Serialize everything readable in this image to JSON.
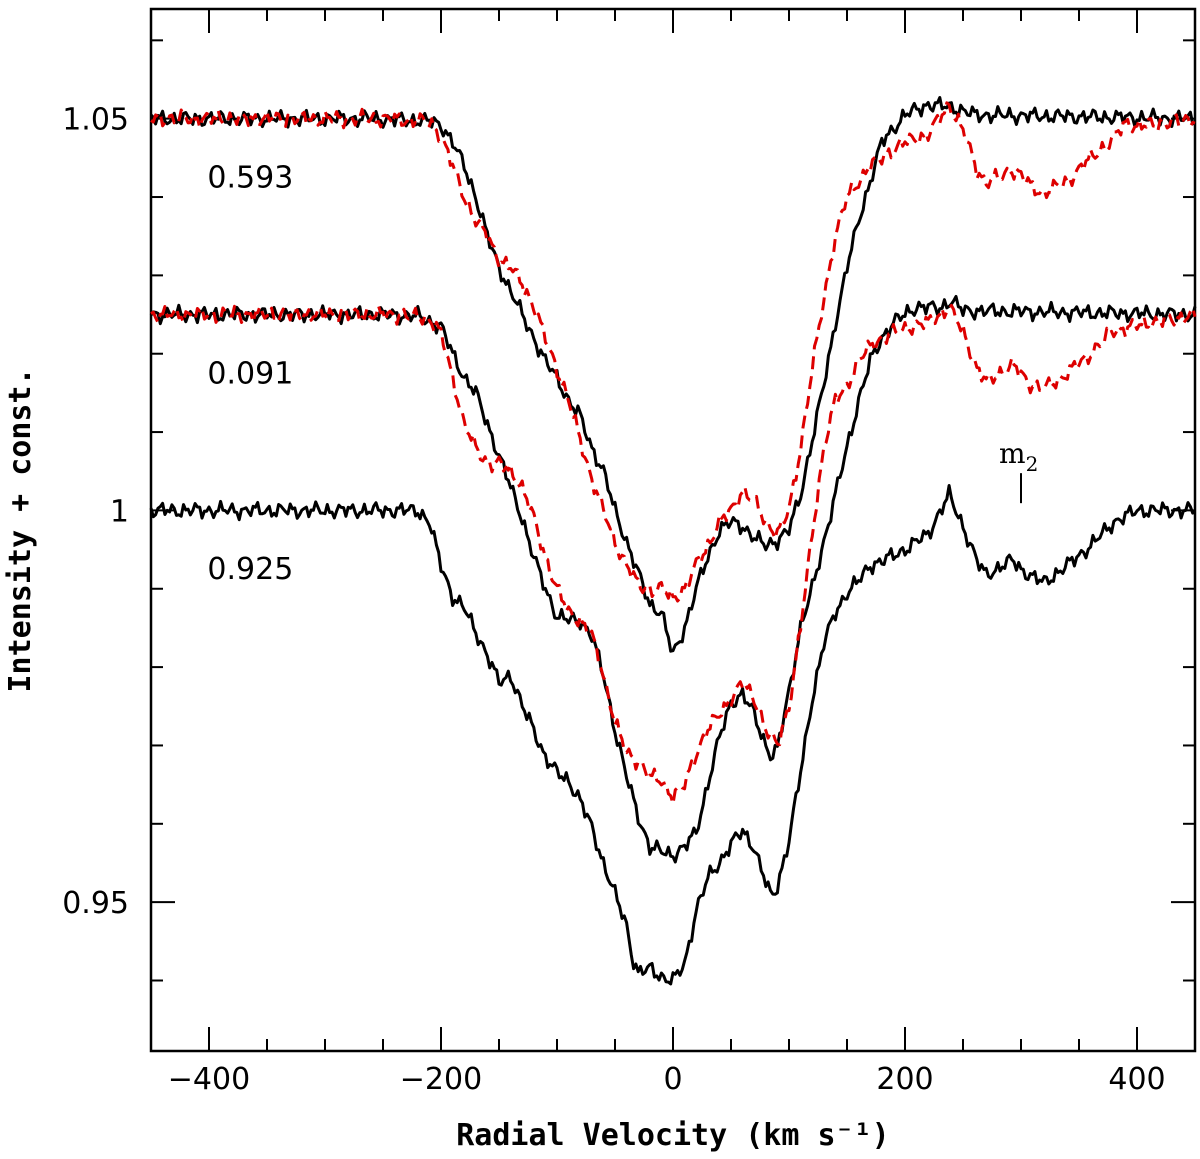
{
  "chart_data": {
    "type": "line",
    "title": "",
    "xlabel": "Radial Velocity (km s⁻¹)",
    "ylabel": "Intensity + const.",
    "xlim": [
      -450,
      450
    ],
    "ylim": [
      0.931,
      1.064
    ],
    "grid": false,
    "x_ticks": [
      -400,
      -200,
      0,
      200,
      400
    ],
    "x_tick_labels": [
      "−400",
      "−200",
      "0",
      "200",
      "400"
    ],
    "y_ticks": [
      0.95,
      1.0,
      1.05
    ],
    "y_tick_labels": [
      "0.95",
      "1",
      "1.05"
    ],
    "colors": {
      "observed": "#000000",
      "model": "#dd0000"
    },
    "series": [
      {
        "name": "0.593 observed",
        "style": "solid",
        "color": "#000000",
        "points": [
          [
            -450,
            1.05
          ],
          [
            -260,
            1.05
          ],
          [
            -210,
            1.0497
          ],
          [
            -200,
            1.0492
          ],
          [
            -190,
            1.047
          ],
          [
            -180,
            1.044
          ],
          [
            -170,
            1.04
          ],
          [
            -160,
            1.035
          ],
          [
            -150,
            1.031
          ],
          [
            -140,
            1.028
          ],
          [
            -130,
            1.025
          ],
          [
            -120,
            1.022
          ],
          [
            -110,
            1.019
          ],
          [
            -100,
            1.017
          ],
          [
            -90,
            1.014
          ],
          [
            -80,
            1.012
          ],
          [
            -70,
            1.008
          ],
          [
            -60,
            1.005
          ],
          [
            -50,
            1.0
          ],
          [
            -40,
            0.996
          ],
          [
            -30,
            0.992
          ],
          [
            -20,
            0.988
          ],
          [
            -10,
            0.987
          ],
          [
            0,
            0.9815
          ],
          [
            10,
            0.985
          ],
          [
            20,
            0.99
          ],
          [
            30,
            0.994
          ],
          [
            40,
            0.9975
          ],
          [
            50,
            0.9985
          ],
          [
            60,
            0.998
          ],
          [
            70,
            0.9965
          ],
          [
            80,
            0.9955
          ],
          [
            90,
            0.9962
          ],
          [
            100,
            0.9975
          ],
          [
            110,
            1.002
          ],
          [
            120,
            1.009
          ],
          [
            130,
            1.016
          ],
          [
            140,
            1.024
          ],
          [
            150,
            1.031
          ],
          [
            160,
            1.037
          ],
          [
            170,
            1.042
          ],
          [
            180,
            1.047
          ],
          [
            200,
            1.0505
          ],
          [
            220,
            1.0518
          ],
          [
            240,
            1.0515
          ],
          [
            260,
            1.0505
          ],
          [
            450,
            1.05
          ]
        ]
      },
      {
        "name": "0.593 model",
        "style": "dashed",
        "color": "#dd0000",
        "points": [
          [
            -450,
            1.05
          ],
          [
            -250,
            1.05
          ],
          [
            -210,
            1.0496
          ],
          [
            -200,
            1.0478
          ],
          [
            -190,
            1.044
          ],
          [
            -180,
            1.04
          ],
          [
            -170,
            1.037
          ],
          [
            -160,
            1.035
          ],
          [
            -150,
            1.032
          ],
          [
            -140,
            1.031
          ],
          [
            -130,
            1.029
          ],
          [
            -120,
            1.026
          ],
          [
            -110,
            1.022
          ],
          [
            -100,
            1.018
          ],
          [
            -90,
            1.014
          ],
          [
            -80,
            1.009
          ],
          [
            -70,
            1.004
          ],
          [
            -60,
            1.0
          ],
          [
            -50,
            0.996
          ],
          [
            -40,
            0.993
          ],
          [
            -30,
            0.9905
          ],
          [
            -20,
            0.9898
          ],
          [
            -10,
            0.99
          ],
          [
            0,
            0.9888
          ],
          [
            10,
            0.99
          ],
          [
            20,
            0.993
          ],
          [
            30,
            0.9955
          ],
          [
            40,
            0.9985
          ],
          [
            50,
            1.0
          ],
          [
            60,
            1.0025
          ],
          [
            70,
            1.0012
          ],
          [
            80,
            0.9985
          ],
          [
            90,
            0.997
          ],
          [
            100,
            1.0
          ],
          [
            110,
            1.008
          ],
          [
            120,
            1.018
          ],
          [
            130,
            1.027
          ],
          [
            140,
            1.035
          ],
          [
            150,
            1.04
          ],
          [
            160,
            1.042
          ],
          [
            170,
            1.044
          ],
          [
            180,
            1.045
          ],
          [
            190,
            1.046
          ],
          [
            200,
            1.047
          ],
          [
            220,
            1.048
          ],
          [
            238,
            1.0518
          ],
          [
            250,
            1.0485
          ],
          [
            262,
            1.0435
          ],
          [
            270,
            1.0418
          ],
          [
            285,
            1.0428
          ],
          [
            292,
            1.0435
          ],
          [
            300,
            1.0428
          ],
          [
            310,
            1.0412
          ],
          [
            320,
            1.0405
          ],
          [
            340,
            1.042
          ],
          [
            360,
            1.045
          ],
          [
            380,
            1.0475
          ],
          [
            390,
            1.0495
          ],
          [
            400,
            1.049
          ],
          [
            450,
            1.05
          ]
        ]
      },
      {
        "name": "0.091 observed",
        "style": "solid",
        "color": "#000000",
        "points": [
          [
            -450,
            1.025
          ],
          [
            -250,
            1.025
          ],
          [
            -220,
            1.0248
          ],
          [
            -200,
            1.0235
          ],
          [
            -190,
            1.02
          ],
          [
            -180,
            1.017
          ],
          [
            -170,
            1.015
          ],
          [
            -160,
            1.011
          ],
          [
            -150,
            1.007
          ],
          [
            -140,
            1.003
          ],
          [
            -130,
            0.999
          ],
          [
            -120,
            0.994
          ],
          [
            -110,
            0.99
          ],
          [
            -100,
            0.9865
          ],
          [
            -90,
            0.986
          ],
          [
            -80,
            0.986
          ],
          [
            -70,
            0.984
          ],
          [
            -60,
            0.979
          ],
          [
            -50,
            0.972
          ],
          [
            -40,
            0.966
          ],
          [
            -30,
            0.961
          ],
          [
            -20,
            0.957
          ],
          [
            -10,
            0.9565
          ],
          [
            0,
            0.956
          ],
          [
            10,
            0.957
          ],
          [
            20,
            0.959
          ],
          [
            30,
            0.965
          ],
          [
            40,
            0.971
          ],
          [
            50,
            0.9755
          ],
          [
            60,
            0.9765
          ],
          [
            70,
            0.974
          ],
          [
            80,
            0.97
          ],
          [
            85,
            0.9685
          ],
          [
            90,
            0.9695
          ],
          [
            100,
            0.977
          ],
          [
            110,
            0.985
          ],
          [
            120,
            0.99
          ],
          [
            130,
            0.996
          ],
          [
            140,
            1.002
          ],
          [
            150,
            1.008
          ],
          [
            160,
            1.014
          ],
          [
            170,
            1.019
          ],
          [
            180,
            1.022
          ],
          [
            190,
            1.024
          ],
          [
            200,
            1.025
          ],
          [
            210,
            1.026
          ],
          [
            230,
            1.0258
          ],
          [
            240,
            1.0268
          ],
          [
            250,
            1.0255
          ],
          [
            450,
            1.025
          ]
        ]
      },
      {
        "name": "0.091 model",
        "style": "dashed",
        "color": "#dd0000",
        "points": [
          [
            -450,
            1.025
          ],
          [
            -240,
            1.025
          ],
          [
            -210,
            1.0245
          ],
          [
            -200,
            1.0225
          ],
          [
            -190,
            1.017
          ],
          [
            -180,
            1.011
          ],
          [
            -170,
            1.008
          ],
          [
            -160,
            1.006
          ],
          [
            -150,
            1.006
          ],
          [
            -140,
            1.005
          ],
          [
            -130,
            1.003
          ],
          [
            -120,
            0.999
          ],
          [
            -110,
            0.994
          ],
          [
            -100,
            0.99
          ],
          [
            -90,
            0.987
          ],
          [
            -80,
            0.986
          ],
          [
            -70,
            0.984
          ],
          [
            -60,
            0.979
          ],
          [
            -50,
            0.973
          ],
          [
            -40,
            0.969
          ],
          [
            -30,
            0.968
          ],
          [
            -20,
            0.966
          ],
          [
            -10,
            0.9655
          ],
          [
            0,
            0.9635
          ],
          [
            10,
            0.965
          ],
          [
            20,
            0.969
          ],
          [
            30,
            0.972
          ],
          [
            40,
            0.974
          ],
          [
            50,
            0.976
          ],
          [
            60,
            0.978
          ],
          [
            70,
            0.976
          ],
          [
            80,
            0.972
          ],
          [
            90,
            0.97
          ],
          [
            100,
            0.975
          ],
          [
            110,
            0.985
          ],
          [
            120,
            0.997
          ],
          [
            130,
            1.008
          ],
          [
            140,
            1.014
          ],
          [
            150,
            1.016
          ],
          [
            160,
            1.019
          ],
          [
            170,
            1.021
          ],
          [
            180,
            1.022
          ],
          [
            200,
            1.0232
          ],
          [
            220,
            1.024
          ],
          [
            238,
            1.0258
          ],
          [
            250,
            1.023
          ],
          [
            262,
            1.018
          ],
          [
            270,
            1.0165
          ],
          [
            285,
            1.0178
          ],
          [
            293,
            1.0185
          ],
          [
            300,
            1.0175
          ],
          [
            310,
            1.0158
          ],
          [
            320,
            1.0155
          ],
          [
            340,
            1.0175
          ],
          [
            360,
            1.02
          ],
          [
            380,
            1.023
          ],
          [
            450,
            1.025
          ]
        ]
      },
      {
        "name": "0.925 observed",
        "style": "solid",
        "color": "#000000",
        "points": [
          [
            -450,
            1.0
          ],
          [
            -220,
            1.0
          ],
          [
            -210,
            0.9985
          ],
          [
            -200,
            0.993
          ],
          [
            -190,
            0.989
          ],
          [
            -180,
            0.9875
          ],
          [
            -170,
            0.9845
          ],
          [
            -160,
            0.9815
          ],
          [
            -150,
            0.978
          ],
          [
            -140,
            0.979
          ],
          [
            -130,
            0.975
          ],
          [
            -120,
            0.972
          ],
          [
            -110,
            0.9685
          ],
          [
            -100,
            0.9665
          ],
          [
            -90,
            0.9655
          ],
          [
            -80,
            0.963
          ],
          [
            -70,
            0.9595
          ],
          [
            -60,
            0.955
          ],
          [
            -50,
            0.951
          ],
          [
            -40,
            0.947
          ],
          [
            -35,
            0.943
          ],
          [
            -30,
            0.941
          ],
          [
            -20,
            0.9415
          ],
          [
            -10,
            0.9405
          ],
          [
            0,
            0.94
          ],
          [
            10,
            0.942
          ],
          [
            20,
            0.949
          ],
          [
            30,
            0.953
          ],
          [
            40,
            0.955
          ],
          [
            50,
            0.9575
          ],
          [
            60,
            0.959
          ],
          [
            70,
            0.957
          ],
          [
            80,
            0.9525
          ],
          [
            85,
            0.9505
          ],
          [
            90,
            0.952
          ],
          [
            100,
            0.958
          ],
          [
            110,
            0.9665
          ],
          [
            120,
            0.976
          ],
          [
            130,
            0.983
          ],
          [
            140,
            0.987
          ],
          [
            150,
            0.9895
          ],
          [
            160,
            0.991
          ],
          [
            170,
            0.993
          ],
          [
            180,
            0.9935
          ],
          [
            200,
            0.995
          ],
          [
            220,
            0.997
          ],
          [
            238,
            1.002
          ],
          [
            250,
            0.998
          ],
          [
            262,
            0.9935
          ],
          [
            270,
            0.9918
          ],
          [
            285,
            0.993
          ],
          [
            293,
            0.9937
          ],
          [
            300,
            0.9925
          ],
          [
            310,
            0.9915
          ],
          [
            320,
            0.9908
          ],
          [
            340,
            0.993
          ],
          [
            360,
            0.9955
          ],
          [
            380,
            0.9985
          ],
          [
            400,
            1.0
          ],
          [
            450,
            1.0
          ]
        ]
      }
    ],
    "annotations": [
      {
        "text": "0.593",
        "x": -360,
        "y": 1.0425
      },
      {
        "text": "0.091",
        "x": -360,
        "y": 1.0175
      },
      {
        "text": "0.925",
        "x": -360,
        "y": 0.9925
      },
      {
        "text": "m",
        "subscript": "2",
        "x": 300,
        "y": 1.0045
      }
    ]
  }
}
